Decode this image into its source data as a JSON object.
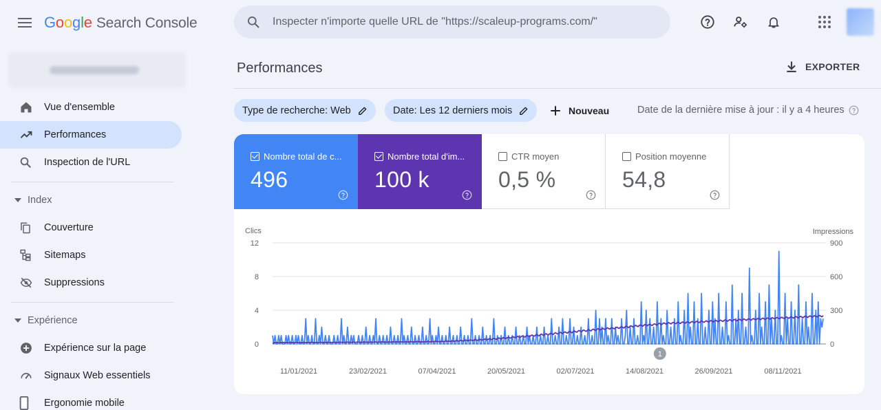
{
  "app": {
    "logo_letters": [
      "G",
      "o",
      "o",
      "g",
      "l",
      "e"
    ],
    "logo_colors": [
      "#4285f4",
      "#ea4335",
      "#fbbc05",
      "#4285f4",
      "#34a853",
      "#ea4335"
    ],
    "product": "Search Console"
  },
  "search": {
    "placeholder": "Inspecter n'importe quelle URL de \"https://scaleup-programs.com/\""
  },
  "top_icons": [
    "help-icon",
    "manage-users-icon",
    "notifications-icon",
    "apps-icon"
  ],
  "sidebar": {
    "items": [
      {
        "label": "Vue d'ensemble",
        "icon": "home-icon"
      },
      {
        "label": "Performances",
        "icon": "trending-up-icon",
        "active": true
      },
      {
        "label": "Inspection de l'URL",
        "icon": "search-icon"
      }
    ],
    "index_section": {
      "title": "Index",
      "items": [
        {
          "label": "Couverture",
          "icon": "copy-icon"
        },
        {
          "label": "Sitemaps",
          "icon": "sitemap-icon"
        },
        {
          "label": "Suppressions",
          "icon": "visibility-off-icon"
        }
      ]
    },
    "experience_section": {
      "title": "Expérience",
      "items": [
        {
          "label": "Expérience sur la page",
          "icon": "add-circle-icon"
        },
        {
          "label": "Signaux Web essentiels",
          "icon": "speed-icon"
        },
        {
          "label": "Ergonomie mobile",
          "icon": "smartphone-icon"
        }
      ]
    }
  },
  "main": {
    "title": "Performances",
    "export_label": "EXPORTER",
    "filters": {
      "search_type": "Type de recherche: Web",
      "date": "Date: Les 12 derniers mois",
      "new_label": "Nouveau",
      "last_update": "Date de la dernière mise à jour : il y a 4 heures"
    },
    "metrics": [
      {
        "label": "Nombre total de c...",
        "value": "496",
        "checked": true
      },
      {
        "label": "Nombre total d'im...",
        "value": "100 k",
        "checked": true
      },
      {
        "label": "CTR moyen",
        "value": "0,5 %",
        "checked": false
      },
      {
        "label": "Position moyenne",
        "value": "54,8",
        "checked": false
      }
    ]
  },
  "chart_data": {
    "type": "line",
    "left_axis_label": "Clics",
    "right_axis_label": "Impressions",
    "left_ticks": [
      0,
      4,
      8,
      12
    ],
    "right_ticks": [
      0,
      300,
      600,
      900
    ],
    "ylim_left": [
      0,
      12
    ],
    "ylim_right": [
      0,
      900
    ],
    "x_ticks": [
      "11/01/2021",
      "23/02/2021",
      "07/04/2021",
      "20/05/2021",
      "02/07/2021",
      "14/08/2021",
      "26/09/2021",
      "08/11/2021"
    ],
    "annotation": "1",
    "series": [
      {
        "name": "Clics",
        "color": "#4285f4",
        "axis": "left",
        "values": [
          1,
          0,
          1,
          0,
          0,
          1,
          0,
          1,
          0,
          0,
          0,
          1,
          0,
          1,
          0,
          0,
          1,
          0,
          0,
          1,
          0,
          1,
          0,
          0,
          1,
          0,
          0,
          3,
          0,
          1,
          0,
          0,
          1,
          0,
          0,
          3,
          0,
          0,
          1,
          0,
          2,
          0,
          0,
          1,
          0,
          0,
          1,
          0,
          0,
          0,
          1,
          0,
          0,
          1,
          0,
          0,
          3,
          0,
          1,
          0,
          0,
          2,
          0,
          0,
          1,
          0,
          1,
          0,
          0,
          0,
          1,
          0,
          0,
          1,
          0,
          0,
          2,
          0,
          0,
          1,
          0,
          0,
          1,
          0,
          3,
          0,
          0,
          1,
          0,
          0,
          1,
          0,
          0,
          1,
          0,
          0,
          2,
          0,
          0,
          1,
          0,
          0,
          1,
          0,
          0,
          3,
          0,
          1,
          0,
          0,
          1,
          0,
          0,
          2,
          0,
          0,
          1,
          0,
          0,
          1,
          0,
          0,
          2,
          0,
          0,
          1,
          0,
          0,
          3,
          0,
          1,
          0,
          0,
          1,
          0,
          2,
          0,
          0,
          1,
          0,
          0,
          1,
          0,
          0,
          2,
          0,
          0,
          1,
          0,
          0,
          1,
          0,
          0,
          2,
          0,
          0,
          1,
          0,
          0,
          1,
          0,
          0,
          3,
          0,
          0,
          1,
          0,
          0,
          1,
          0,
          0,
          2,
          0,
          0,
          1,
          0,
          0,
          1,
          0,
          0,
          3,
          0,
          0,
          1,
          0,
          0,
          1,
          0,
          0,
          2,
          0,
          0,
          1,
          0,
          0,
          1,
          0,
          0,
          2,
          0,
          0,
          1,
          0,
          0,
          1,
          0,
          0,
          2,
          0,
          1,
          0,
          0,
          1,
          0,
          0,
          2,
          0,
          0,
          1,
          0,
          0,
          2,
          0,
          0,
          1,
          0,
          0,
          3,
          0,
          0,
          1,
          0,
          0,
          2,
          0,
          0,
          3,
          0,
          0,
          1,
          0,
          0,
          3,
          0,
          0,
          2,
          0,
          0,
          1,
          0,
          0,
          2,
          0,
          0,
          1,
          0,
          0,
          3,
          0,
          0,
          1,
          0,
          0,
          4,
          0,
          0,
          3,
          0,
          2,
          0,
          0,
          3,
          0,
          1,
          0,
          0,
          3,
          0,
          0,
          2,
          0,
          1,
          0,
          0,
          3,
          0,
          0,
          1,
          4,
          0,
          0,
          2,
          0,
          0,
          3,
          0,
          0,
          1,
          0,
          0,
          5,
          0,
          1,
          0,
          4,
          0,
          0,
          3,
          0,
          0,
          2,
          0,
          0,
          5,
          0,
          0,
          3,
          0,
          1,
          0,
          0,
          4,
          0,
          0,
          2,
          0,
          0,
          3,
          0,
          0,
          5,
          0,
          1,
          0,
          0,
          4,
          0,
          0,
          6,
          0,
          2,
          0,
          0,
          5,
          0,
          0,
          3,
          0,
          0,
          6,
          0,
          0,
          2,
          0,
          0,
          4,
          0,
          0,
          5,
          0,
          3,
          0,
          0,
          6,
          0,
          0,
          2,
          0,
          0,
          5,
          0,
          1,
          0,
          0,
          7,
          0,
          0,
          3,
          0,
          4,
          0,
          0,
          6,
          0,
          0,
          2,
          0,
          0,
          9,
          0,
          1,
          0,
          0,
          4,
          0,
          0,
          6,
          0,
          2,
          0,
          0,
          5,
          0,
          0,
          7,
          0,
          3,
          0,
          0,
          4,
          0,
          0,
          11,
          0,
          1,
          0,
          0,
          6,
          0,
          3,
          0,
          0,
          5,
          0,
          0,
          4,
          0,
          0,
          7,
          0,
          0,
          3,
          0,
          0,
          5,
          0,
          2,
          0,
          0,
          6,
          0,
          0,
          4,
          0,
          5,
          0,
          3,
          2,
          3
        ]
      },
      {
        "name": "Impressions",
        "color": "#5e35b1",
        "axis": "right",
        "values": [
          10,
          8,
          12,
          10,
          14,
          11,
          9,
          13,
          10,
          15,
          12,
          11,
          14,
          10,
          12,
          16,
          11,
          13,
          10,
          12,
          15,
          13,
          11,
          14,
          12,
          10,
          13,
          15,
          12,
          11,
          14,
          13,
          12,
          16,
          14,
          12,
          11,
          15,
          13,
          12,
          14,
          16,
          13,
          12,
          15,
          14,
          12,
          17,
          13,
          15,
          14,
          12,
          16,
          13,
          15,
          14,
          13,
          17,
          15,
          14,
          16,
          13,
          15,
          18,
          14,
          16,
          15,
          13,
          17,
          16,
          14,
          15,
          18,
          16,
          14,
          17,
          15,
          16,
          19,
          15,
          17,
          16,
          14,
          18,
          17,
          15,
          16,
          19,
          17,
          15,
          18,
          16,
          17,
          20,
          16,
          18,
          17,
          15,
          19,
          18,
          16,
          17,
          20,
          18,
          16,
          19,
          17,
          18,
          21,
          17,
          19,
          18,
          16,
          20,
          19,
          17,
          18,
          22,
          19,
          17,
          20,
          18,
          19,
          23,
          18,
          20,
          19,
          17,
          21,
          20,
          18,
          19,
          24,
          20,
          18,
          22,
          19,
          21,
          25,
          20,
          23,
          21,
          19,
          24,
          22,
          21,
          23,
          27,
          22,
          25,
          24,
          21,
          28,
          25,
          23,
          26,
          30,
          27,
          25,
          29,
          32,
          28,
          26,
          31,
          34,
          30,
          28,
          33,
          36,
          32,
          30,
          35,
          38,
          34,
          31,
          37,
          41,
          36,
          34,
          40,
          44,
          39,
          36,
          43,
          47,
          42,
          39,
          46,
          50,
          45,
          42,
          49,
          54,
          48,
          45,
          52,
          57,
          51,
          48,
          56,
          61,
          55,
          52,
          59,
          65,
          58,
          55,
          63,
          68,
          62,
          58,
          66,
          72,
          65,
          62,
          70,
          76,
          69,
          65,
          74,
          80,
          73,
          69,
          78,
          84,
          77,
          72,
          82,
          88,
          81,
          76,
          86,
          92,
          85,
          80,
          90,
          96,
          89,
          84,
          94,
          100,
          93,
          88,
          98,
          104,
          97,
          92,
          102,
          108,
          101,
          96,
          106,
          112,
          105,
          100,
          110,
          116,
          109,
          104,
          114,
          120,
          113,
          108,
          118,
          124,
          117,
          112,
          122,
          128,
          121,
          116,
          126,
          132,
          125,
          120,
          130,
          136,
          129,
          124,
          134,
          140,
          133,
          128,
          138,
          144,
          137,
          132,
          142,
          146,
          139,
          134,
          144,
          150,
          143,
          138,
          148,
          154,
          147,
          142,
          152,
          158,
          151,
          146,
          156,
          162,
          155,
          150,
          160,
          166,
          159,
          154,
          164,
          170,
          163,
          158,
          168,
          174,
          167,
          162,
          172,
          176,
          169,
          164,
          174,
          180,
          173,
          168,
          178,
          184,
          177,
          172,
          182,
          188,
          181,
          176,
          186,
          190,
          183,
          178,
          188,
          192,
          185,
          180,
          190,
          194,
          187,
          182,
          192,
          196,
          189,
          184,
          194,
          198,
          191,
          186,
          196,
          200,
          193,
          188,
          198,
          202,
          195,
          190,
          200,
          204,
          197,
          192,
          202,
          206,
          199,
          194,
          204,
          208,
          201,
          196,
          206,
          210,
          203,
          198,
          208,
          212,
          205,
          200,
          210,
          214,
          207,
          202,
          212,
          216,
          209,
          204,
          214,
          218,
          211,
          206,
          216,
          220,
          213,
          208,
          218,
          222,
          215,
          210,
          220,
          224,
          217,
          212,
          222,
          226,
          219,
          214,
          224,
          228,
          221,
          216,
          226,
          230,
          223,
          218,
          228,
          232,
          225,
          220,
          230,
          234,
          227,
          222,
          232,
          236,
          229,
          224,
          234,
          238,
          231,
          226,
          236,
          240,
          233,
          228,
          238,
          242,
          235,
          230,
          240,
          244,
          237,
          232,
          242,
          246,
          239,
          234,
          244,
          248,
          241,
          236,
          246,
          250,
          243,
          238,
          248,
          252,
          245,
          240,
          250,
          254,
          247,
          242,
          252
        ]
      }
    ]
  }
}
